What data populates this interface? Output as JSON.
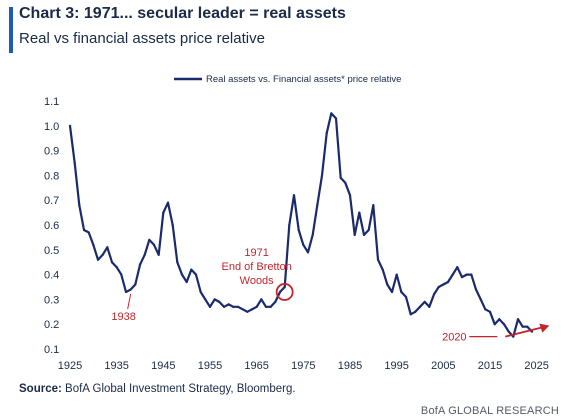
{
  "header": {
    "title": "Chart 3: 1971... secular leader = real assets",
    "subtitle": "Real vs financial assets price relative"
  },
  "footer": {
    "source_label": "Source:",
    "source_text": " BofA Global Investment Strategy, Bloomberg.",
    "credit": "BofA GLOBAL RESEARCH"
  },
  "colors": {
    "series": "#1a2a6c",
    "annotation": "#c0262c",
    "accent": "#1f5bb5"
  },
  "chart_data": {
    "type": "line",
    "title": "Chart 3: 1971... secular leader = real assets",
    "subtitle": "Real vs financial assets price relative",
    "xlabel": "",
    "ylabel": "",
    "xlim": [
      1925,
      2027
    ],
    "ylim": [
      0.1,
      1.1
    ],
    "xticks": [
      "1925",
      "1935",
      "1945",
      "1955",
      "1965",
      "1975",
      "1985",
      "1995",
      "2005",
      "2015",
      "2025"
    ],
    "yticks": [
      "0.1",
      "0.2",
      "0.3",
      "0.4",
      "0.5",
      "0.6",
      "0.7",
      "0.8",
      "0.9",
      "1.0",
      "1.1"
    ],
    "grid": false,
    "legend_position": "top-center",
    "series": [
      {
        "name": "Real assets vs. Financial assets* price relative",
        "color": "#1a2a6c",
        "x": [
          1925,
          1926,
          1927,
          1928,
          1929,
          1930,
          1931,
          1932,
          1933,
          1934,
          1935,
          1936,
          1937,
          1938,
          1939,
          1940,
          1941,
          1942,
          1943,
          1944,
          1945,
          1946,
          1947,
          1948,
          1949,
          1950,
          1951,
          1952,
          1953,
          1954,
          1955,
          1956,
          1957,
          1958,
          1959,
          1960,
          1961,
          1962,
          1963,
          1964,
          1965,
          1966,
          1967,
          1968,
          1969,
          1970,
          1971,
          1972,
          1973,
          1974,
          1975,
          1976,
          1977,
          1978,
          1979,
          1980,
          1981,
          1982,
          1983,
          1984,
          1985,
          1986,
          1987,
          1988,
          1989,
          1990,
          1991,
          1992,
          1993,
          1994,
          1995,
          1996,
          1997,
          1998,
          1999,
          2000,
          2001,
          2002,
          2003,
          2004,
          2005,
          2006,
          2007,
          2008,
          2009,
          2010,
          2011,
          2012,
          2013,
          2014,
          2015,
          2016,
          2017,
          2018,
          2019,
          2020,
          2021,
          2022,
          2023,
          2024
        ],
        "y": [
          1.0,
          0.85,
          0.68,
          0.58,
          0.57,
          0.52,
          0.46,
          0.48,
          0.51,
          0.45,
          0.43,
          0.4,
          0.33,
          0.34,
          0.36,
          0.44,
          0.48,
          0.54,
          0.52,
          0.48,
          0.65,
          0.69,
          0.6,
          0.45,
          0.4,
          0.37,
          0.42,
          0.4,
          0.33,
          0.3,
          0.27,
          0.3,
          0.29,
          0.27,
          0.28,
          0.27,
          0.27,
          0.26,
          0.25,
          0.26,
          0.27,
          0.3,
          0.27,
          0.27,
          0.29,
          0.33,
          0.35,
          0.6,
          0.72,
          0.58,
          0.52,
          0.49,
          0.56,
          0.68,
          0.8,
          0.97,
          1.05,
          1.03,
          0.79,
          0.77,
          0.72,
          0.56,
          0.65,
          0.56,
          0.58,
          0.68,
          0.46,
          0.42,
          0.36,
          0.33,
          0.4,
          0.33,
          0.31,
          0.24,
          0.25,
          0.27,
          0.29,
          0.27,
          0.32,
          0.35,
          0.36,
          0.37,
          0.4,
          0.43,
          0.39,
          0.4,
          0.4,
          0.34,
          0.3,
          0.26,
          0.25,
          0.2,
          0.22,
          0.2,
          0.17,
          0.15,
          0.22,
          0.19,
          0.19,
          0.17
        ]
      }
    ],
    "annotations": [
      {
        "lines": [
          "1971",
          "End of Bretton",
          "Woods"
        ],
        "x": 1971,
        "y": 0.33,
        "marker": "circle"
      },
      {
        "lines": [
          "1938"
        ],
        "x": 1938,
        "y": 0.33,
        "marker": "pointer"
      },
      {
        "lines": [
          "2020"
        ],
        "x": 2020,
        "y": 0.15,
        "marker": "arrow"
      }
    ]
  }
}
